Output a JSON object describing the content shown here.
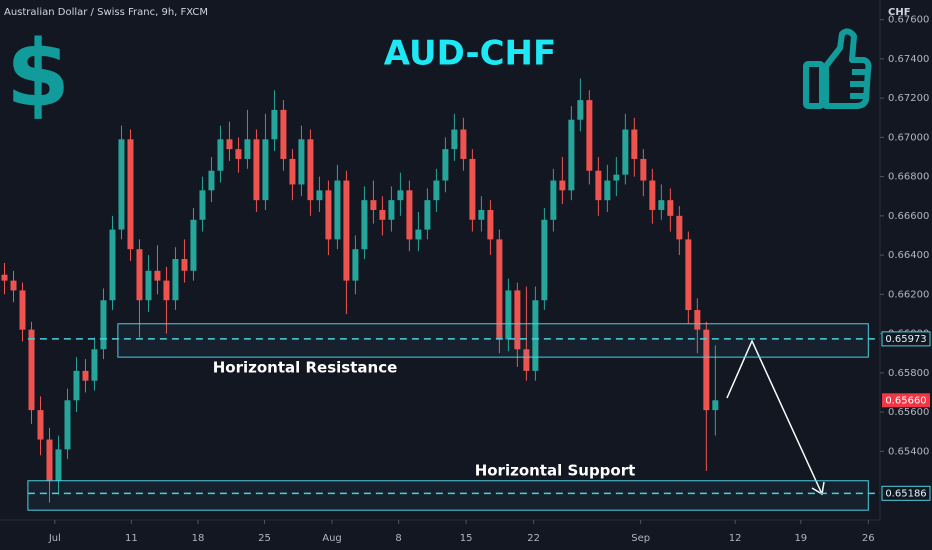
{
  "chart_data": {
    "type": "candlestick",
    "title": "AUD-CHF",
    "subtitle": "Australian Dollar / Swiss Franc, 9h, FXCM",
    "y_axis_label": "CHF",
    "badge": "$",
    "up_color": "#26a69a",
    "down_color": "#ef5350",
    "grid": false,
    "ylim": [
      0.6505,
      0.677
    ],
    "yticks": [
      {
        "value": 0.654,
        "label": "0.65400"
      },
      {
        "value": 0.656,
        "label": "0.65600"
      },
      {
        "value": 0.658,
        "label": "0.65800"
      },
      {
        "value": 0.66,
        "label": "0.66000"
      },
      {
        "value": 0.662,
        "label": "0.66200"
      },
      {
        "value": 0.664,
        "label": "0.66400"
      },
      {
        "value": 0.666,
        "label": "0.66600"
      },
      {
        "value": 0.668,
        "label": "0.66800"
      },
      {
        "value": 0.67,
        "label": "0.67000"
      },
      {
        "value": 0.672,
        "label": "0.67200"
      },
      {
        "value": 0.674,
        "label": "0.67400"
      },
      {
        "value": 0.676,
        "label": "0.67600"
      }
    ],
    "xlim": [
      -0.5,
      97.3
    ],
    "xticks": [
      {
        "value": 5.6,
        "label": "Jul"
      },
      {
        "value": 14.1,
        "label": "11"
      },
      {
        "value": 21.5,
        "label": "18"
      },
      {
        "value": 28.9,
        "label": "25"
      },
      {
        "value": 36.4,
        "label": "Aug"
      },
      {
        "value": 43.8,
        "label": "8"
      },
      {
        "value": 51.3,
        "label": "15"
      },
      {
        "value": 58.8,
        "label": "22"
      },
      {
        "value": 70.7,
        "label": "Sep"
      },
      {
        "value": 81.2,
        "label": "12"
      },
      {
        "value": 88.5,
        "label": "19"
      },
      {
        "value": 96.0,
        "label": "26"
      }
    ],
    "ohlc": [
      [
        0.663,
        0.6636,
        0.662,
        0.6627
      ],
      [
        0.6627,
        0.6632,
        0.6616,
        0.6622
      ],
      [
        0.6622,
        0.6626,
        0.6596,
        0.6602
      ],
      [
        0.6602,
        0.6606,
        0.6554,
        0.6561
      ],
      [
        0.6561,
        0.6568,
        0.6538,
        0.6546
      ],
      [
        0.6546,
        0.6552,
        0.6514,
        0.6525
      ],
      [
        0.6525,
        0.6548,
        0.6518,
        0.6541
      ],
      [
        0.6541,
        0.6572,
        0.6536,
        0.6566
      ],
      [
        0.6566,
        0.6588,
        0.656,
        0.6581
      ],
      [
        0.6581,
        0.6587,
        0.657,
        0.6576
      ],
      [
        0.6576,
        0.6598,
        0.6571,
        0.6592
      ],
      [
        0.6592,
        0.6623,
        0.6587,
        0.6617
      ],
      [
        0.6617,
        0.666,
        0.6612,
        0.6653
      ],
      [
        0.6653,
        0.6706,
        0.6648,
        0.6699
      ],
      [
        0.6699,
        0.6704,
        0.6637,
        0.6643
      ],
      [
        0.6643,
        0.6648,
        0.6598,
        0.6617
      ],
      [
        0.6617,
        0.664,
        0.6611,
        0.6632
      ],
      [
        0.6632,
        0.6645,
        0.662,
        0.6627
      ],
      [
        0.6627,
        0.6634,
        0.66,
        0.6617
      ],
      [
        0.6617,
        0.6644,
        0.6612,
        0.6638
      ],
      [
        0.6638,
        0.6648,
        0.6626,
        0.6632
      ],
      [
        0.6632,
        0.6664,
        0.6627,
        0.6658
      ],
      [
        0.6658,
        0.668,
        0.6652,
        0.6673
      ],
      [
        0.6673,
        0.669,
        0.6667,
        0.6683
      ],
      [
        0.6683,
        0.6706,
        0.6677,
        0.6699
      ],
      [
        0.6699,
        0.6708,
        0.6688,
        0.6694
      ],
      [
        0.6694,
        0.67,
        0.6682,
        0.6689
      ],
      [
        0.6689,
        0.6714,
        0.6684,
        0.6699
      ],
      [
        0.6699,
        0.6704,
        0.6662,
        0.6668
      ],
      [
        0.6668,
        0.6712,
        0.6663,
        0.6699
      ],
      [
        0.6699,
        0.6724,
        0.6693,
        0.6714
      ],
      [
        0.6714,
        0.6719,
        0.6683,
        0.6689
      ],
      [
        0.6689,
        0.6694,
        0.6668,
        0.6676
      ],
      [
        0.6676,
        0.6706,
        0.667,
        0.6699
      ],
      [
        0.6699,
        0.6704,
        0.666,
        0.6668
      ],
      [
        0.6668,
        0.668,
        0.6662,
        0.6673
      ],
      [
        0.6673,
        0.6678,
        0.664,
        0.6648
      ],
      [
        0.6648,
        0.6686,
        0.6643,
        0.6678
      ],
      [
        0.6678,
        0.6683,
        0.661,
        0.6627
      ],
      [
        0.6627,
        0.665,
        0.662,
        0.6643
      ],
      [
        0.6643,
        0.6675,
        0.6638,
        0.6668
      ],
      [
        0.6668,
        0.6678,
        0.6656,
        0.6663
      ],
      [
        0.6663,
        0.667,
        0.665,
        0.6658
      ],
      [
        0.6658,
        0.6675,
        0.6652,
        0.6668
      ],
      [
        0.6668,
        0.6682,
        0.666,
        0.6673
      ],
      [
        0.6673,
        0.6678,
        0.6642,
        0.6648
      ],
      [
        0.6648,
        0.6662,
        0.6642,
        0.6653
      ],
      [
        0.6653,
        0.6674,
        0.6648,
        0.6668
      ],
      [
        0.6668,
        0.6684,
        0.6662,
        0.6678
      ],
      [
        0.6678,
        0.67,
        0.6672,
        0.6694
      ],
      [
        0.6694,
        0.6712,
        0.6688,
        0.6704
      ],
      [
        0.6704,
        0.671,
        0.6683,
        0.6689
      ],
      [
        0.6689,
        0.6694,
        0.6652,
        0.6658
      ],
      [
        0.6658,
        0.667,
        0.6652,
        0.6663
      ],
      [
        0.6663,
        0.6668,
        0.664,
        0.6648
      ],
      [
        0.6648,
        0.6653,
        0.659,
        0.6597
      ],
      [
        0.6597,
        0.6628,
        0.6591,
        0.6622
      ],
      [
        0.6622,
        0.6626,
        0.6583,
        0.6592
      ],
      [
        0.6592,
        0.6624,
        0.6576,
        0.6581
      ],
      [
        0.6581,
        0.6624,
        0.6576,
        0.6617
      ],
      [
        0.6617,
        0.6664,
        0.6612,
        0.6658
      ],
      [
        0.6658,
        0.6684,
        0.6652,
        0.6678
      ],
      [
        0.6678,
        0.669,
        0.6666,
        0.6673
      ],
      [
        0.6673,
        0.6716,
        0.6668,
        0.6709
      ],
      [
        0.6709,
        0.673,
        0.6703,
        0.6719
      ],
      [
        0.6719,
        0.6724,
        0.6676,
        0.6683
      ],
      [
        0.6683,
        0.669,
        0.666,
        0.6668
      ],
      [
        0.6668,
        0.6686,
        0.6662,
        0.6678
      ],
      [
        0.6678,
        0.669,
        0.667,
        0.6681
      ],
      [
        0.6681,
        0.6712,
        0.6676,
        0.6704
      ],
      [
        0.6704,
        0.671,
        0.668,
        0.6689
      ],
      [
        0.6689,
        0.6694,
        0.667,
        0.6678
      ],
      [
        0.6678,
        0.6684,
        0.6656,
        0.6663
      ],
      [
        0.6663,
        0.6676,
        0.6658,
        0.6668
      ],
      [
        0.6668,
        0.6674,
        0.6652,
        0.666
      ],
      [
        0.666,
        0.6665,
        0.664,
        0.6648
      ],
      [
        0.6648,
        0.6652,
        0.6605,
        0.6612
      ],
      [
        0.6612,
        0.6618,
        0.659,
        0.6602
      ],
      [
        0.6602,
        0.6606,
        0.653,
        0.6561
      ],
      [
        0.6561,
        0.6594,
        0.6548,
        0.6566
      ]
    ],
    "zone_color": "#4dd0e1",
    "zones": [
      {
        "label": "Horizontal Resistance",
        "x": [
          12.6,
          96.0
        ],
        "y": [
          0.6588,
          0.6605
        ]
      },
      {
        "label": "Horizontal Support",
        "x": [
          2.6,
          96.0
        ],
        "y": [
          0.651,
          0.6525
        ]
      }
    ],
    "levels": [
      {
        "value": 0.65973,
        "label": "0.65973"
      },
      {
        "value": 0.65186,
        "label": "0.65186"
      }
    ],
    "last_price": {
      "value": 0.6566,
      "label": "0.65660"
    }
  }
}
